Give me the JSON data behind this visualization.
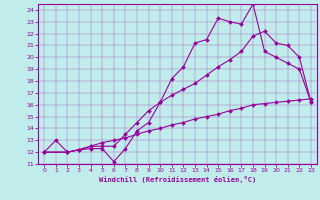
{
  "xlabel": "Windchill (Refroidissement éolien,°C)",
  "bg_color": "#c0ecec",
  "line_color": "#990099",
  "xlim": [
    -0.5,
    23.5
  ],
  "ylim": [
    11,
    24.5
  ],
  "xticks": [
    0,
    1,
    2,
    3,
    4,
    5,
    6,
    7,
    8,
    9,
    10,
    11,
    12,
    13,
    14,
    15,
    16,
    17,
    18,
    19,
    20,
    21,
    22,
    23
  ],
  "yticks": [
    11,
    12,
    13,
    14,
    15,
    16,
    17,
    18,
    19,
    20,
    21,
    22,
    23,
    24
  ],
  "curve1_x": [
    0,
    1,
    2,
    3,
    4,
    5,
    6,
    7,
    8,
    9,
    10,
    11,
    12,
    13,
    14,
    15,
    16,
    17,
    18,
    19,
    20,
    21,
    22,
    23
  ],
  "curve1_y": [
    12,
    13,
    12,
    12.2,
    12.3,
    12.3,
    11.2,
    12.3,
    13.8,
    14.5,
    16.2,
    18.2,
    19.2,
    21.2,
    21.5,
    23.3,
    23.0,
    22.8,
    24.5,
    20.5,
    20.0,
    19.5,
    19.0,
    16.2
  ],
  "curve2_x": [
    0,
    2,
    3,
    4,
    5,
    6,
    7,
    8,
    9,
    10,
    11,
    12,
    13,
    14,
    15,
    16,
    17,
    18,
    19,
    20,
    21,
    22,
    23
  ],
  "curve2_y": [
    12,
    12,
    12.2,
    12.5,
    12.5,
    12.5,
    13.5,
    14.5,
    15.5,
    16.2,
    16.8,
    17.3,
    17.8,
    18.5,
    19.2,
    19.8,
    20.5,
    21.8,
    22.2,
    21.2,
    21.0,
    20.0,
    16.2
  ],
  "curve3_x": [
    0,
    2,
    3,
    4,
    5,
    6,
    7,
    8,
    9,
    10,
    11,
    12,
    13,
    14,
    15,
    16,
    17,
    18,
    19,
    20,
    21,
    22,
    23
  ],
  "curve3_y": [
    12,
    12,
    12.2,
    12.5,
    12.8,
    13.0,
    13.2,
    13.5,
    13.8,
    14.0,
    14.3,
    14.5,
    14.8,
    15.0,
    15.2,
    15.5,
    15.7,
    16.0,
    16.1,
    16.2,
    16.3,
    16.4,
    16.5
  ]
}
